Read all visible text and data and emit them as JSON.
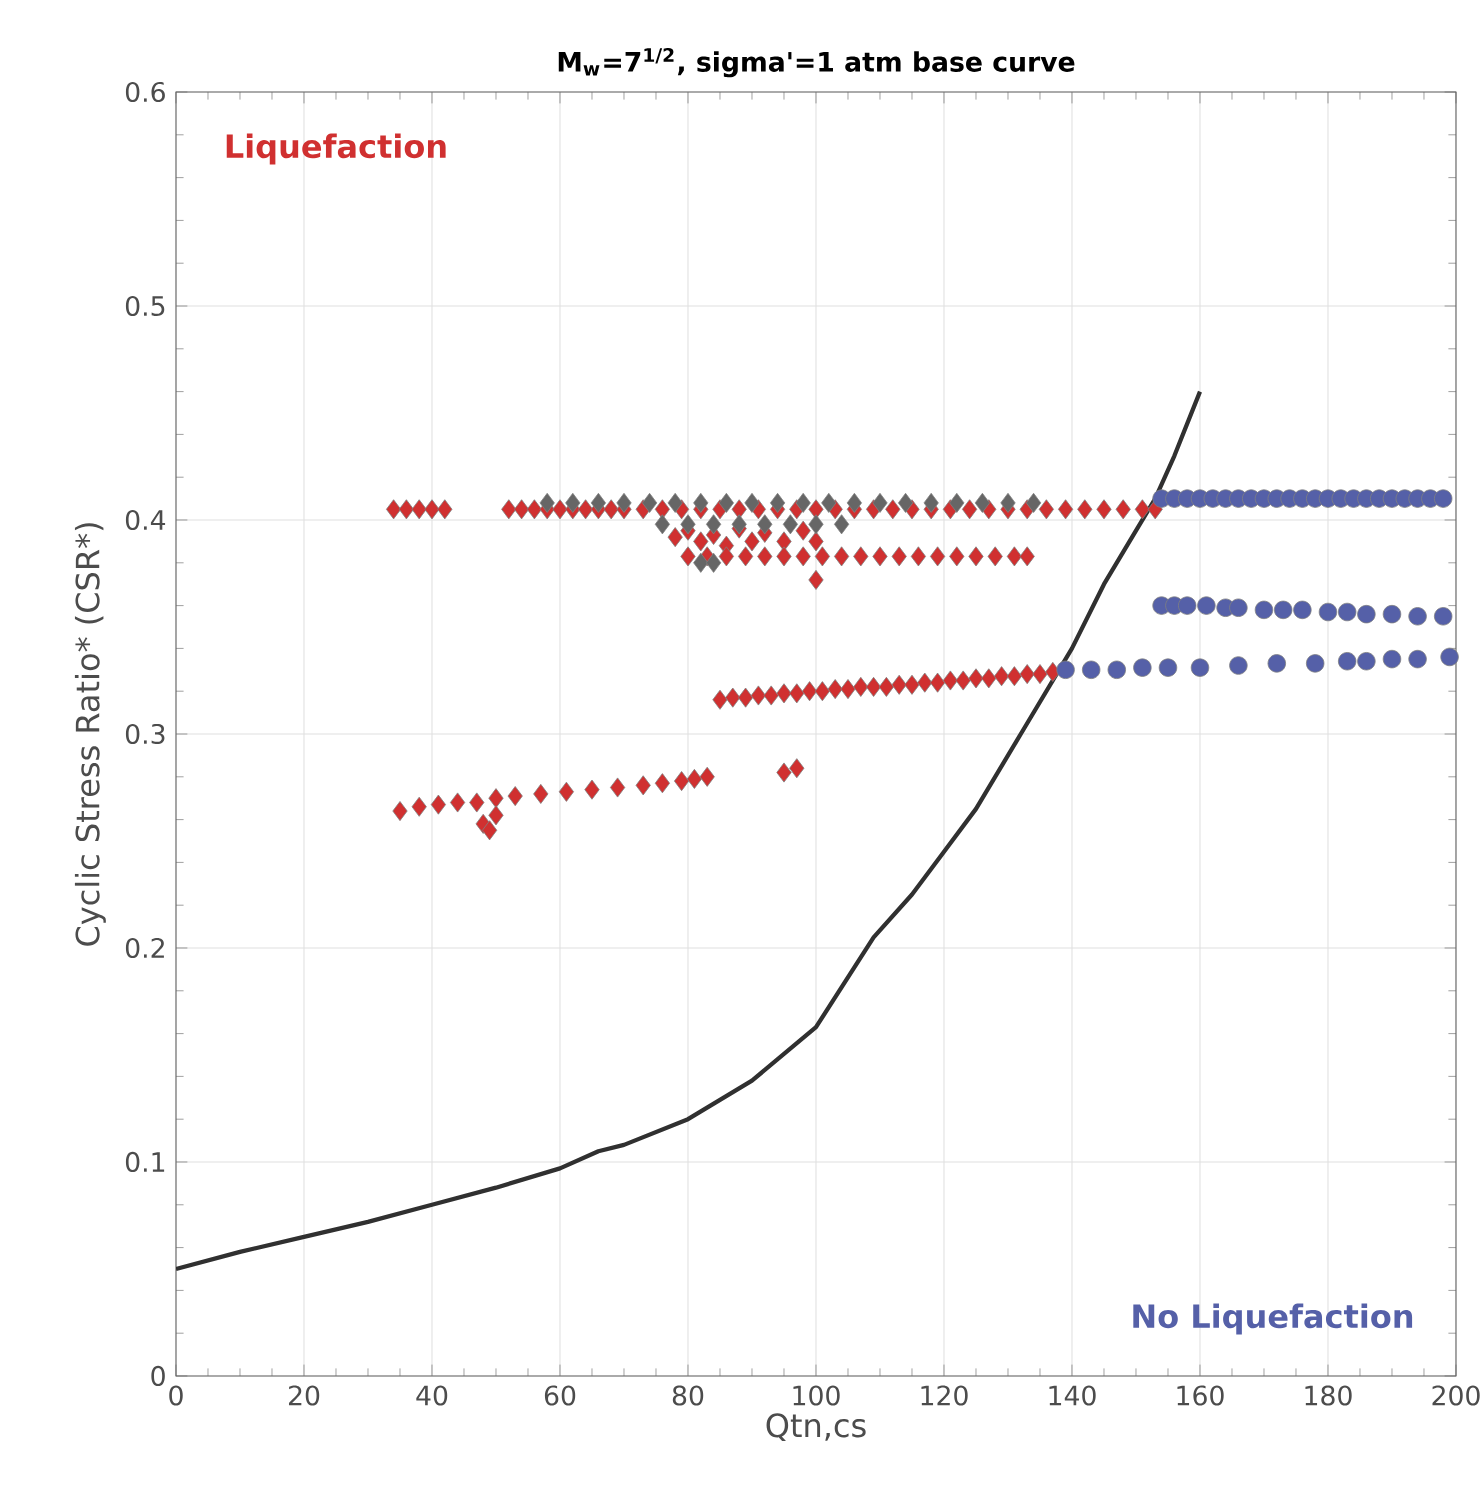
{
  "chart_data": {
    "type": "scatter",
    "title": "M$_{w}$=7$^{1/2}$, sigma'=1 atm base curve",
    "xlabel": "Qtn,cs",
    "ylabel": "Cyclic Stress Ratio* (CSR*)",
    "annotations": [
      "Liquefaction",
      "No Liquefaction"
    ],
    "xlim": [
      0,
      200
    ],
    "ylim": [
      0,
      0.6
    ],
    "xticks": [
      0,
      20,
      40,
      60,
      80,
      100,
      120,
      140,
      160,
      180,
      200
    ],
    "yticks": [
      0,
      0.1,
      0.2,
      0.3,
      0.4,
      0.5,
      0.6
    ],
    "grid": true,
    "series": [
      {
        "marker": "diamond",
        "color": "#d03030",
        "x": [
          34,
          36,
          38,
          40,
          42,
          52,
          54,
          56,
          58,
          60,
          62,
          64,
          66,
          68,
          70,
          73,
          76,
          79,
          82,
          85,
          88,
          91,
          94,
          97,
          100,
          103,
          106,
          109,
          112,
          115,
          118,
          121,
          124,
          127,
          130,
          133,
          136,
          139,
          142,
          145,
          148,
          151,
          153,
          78,
          80,
          82,
          84,
          86,
          88,
          90,
          92,
          95,
          98,
          100,
          80,
          83,
          86,
          89,
          92,
          95,
          98,
          101,
          104,
          107,
          110,
          113,
          116,
          119,
          122,
          125,
          128,
          131,
          133,
          100,
          85,
          87,
          89,
          91,
          93,
          95,
          97,
          99,
          101,
          103,
          105,
          107,
          109,
          111,
          113,
          115,
          117,
          119,
          121,
          123,
          125,
          127,
          129,
          131,
          133,
          135,
          137,
          35,
          38,
          41,
          44,
          47,
          50,
          53,
          57,
          61,
          65,
          69,
          73,
          76,
          79,
          81,
          83,
          48,
          50,
          49,
          95,
          97
        ],
        "values": [
          0.405,
          0.405,
          0.405,
          0.405,
          0.405,
          0.405,
          0.405,
          0.405,
          0.405,
          0.405,
          0.405,
          0.405,
          0.405,
          0.405,
          0.405,
          0.405,
          0.405,
          0.405,
          0.405,
          0.405,
          0.405,
          0.405,
          0.405,
          0.405,
          0.405,
          0.405,
          0.405,
          0.405,
          0.405,
          0.405,
          0.405,
          0.405,
          0.405,
          0.405,
          0.405,
          0.405,
          0.405,
          0.405,
          0.405,
          0.405,
          0.405,
          0.405,
          0.405,
          0.392,
          0.395,
          0.39,
          0.393,
          0.388,
          0.396,
          0.39,
          0.394,
          0.39,
          0.395,
          0.39,
          0.383,
          0.383,
          0.383,
          0.383,
          0.383,
          0.383,
          0.383,
          0.383,
          0.383,
          0.383,
          0.383,
          0.383,
          0.383,
          0.383,
          0.383,
          0.383,
          0.383,
          0.383,
          0.383,
          0.372,
          0.316,
          0.317,
          0.317,
          0.318,
          0.318,
          0.319,
          0.319,
          0.32,
          0.32,
          0.321,
          0.321,
          0.322,
          0.322,
          0.322,
          0.323,
          0.323,
          0.324,
          0.324,
          0.325,
          0.325,
          0.326,
          0.326,
          0.327,
          0.327,
          0.328,
          0.328,
          0.329,
          0.264,
          0.266,
          0.267,
          0.268,
          0.268,
          0.27,
          0.271,
          0.272,
          0.273,
          0.274,
          0.275,
          0.276,
          0.277,
          0.278,
          0.279,
          0.28,
          0.258,
          0.262,
          0.255,
          0.282,
          0.284
        ]
      },
      {
        "marker": "diamond",
        "color": "#666666",
        "x": [
          58,
          62,
          66,
          70,
          74,
          78,
          82,
          86,
          90,
          94,
          98,
          102,
          106,
          110,
          114,
          118,
          122,
          126,
          130,
          134,
          76,
          80,
          84,
          88,
          92,
          96,
          100,
          104,
          82,
          84
        ],
        "values": [
          0.408,
          0.408,
          0.408,
          0.408,
          0.408,
          0.408,
          0.408,
          0.408,
          0.408,
          0.408,
          0.408,
          0.408,
          0.408,
          0.408,
          0.408,
          0.408,
          0.408,
          0.408,
          0.408,
          0.408,
          0.398,
          0.398,
          0.398,
          0.398,
          0.398,
          0.398,
          0.398,
          0.398,
          0.38,
          0.38
        ]
      },
      {
        "marker": "circle",
        "color": "#5560a8",
        "x": [
          154,
          156,
          158,
          160,
          162,
          164,
          166,
          168,
          170,
          172,
          174,
          176,
          178,
          180,
          182,
          184,
          186,
          188,
          190,
          192,
          194,
          196,
          198,
          154,
          156,
          158,
          161,
          164,
          166,
          170,
          173,
          176,
          180,
          183,
          186,
          190,
          194,
          198,
          139,
          143,
          147,
          151,
          155,
          160,
          166,
          172,
          178,
          183,
          186,
          190,
          194,
          199
        ],
        "values": [
          0.41,
          0.41,
          0.41,
          0.41,
          0.41,
          0.41,
          0.41,
          0.41,
          0.41,
          0.41,
          0.41,
          0.41,
          0.41,
          0.41,
          0.41,
          0.41,
          0.41,
          0.41,
          0.41,
          0.41,
          0.41,
          0.41,
          0.41,
          0.36,
          0.36,
          0.36,
          0.36,
          0.359,
          0.359,
          0.358,
          0.358,
          0.358,
          0.357,
          0.357,
          0.356,
          0.356,
          0.355,
          0.355,
          0.33,
          0.33,
          0.33,
          0.331,
          0.331,
          0.331,
          0.332,
          0.333,
          0.333,
          0.334,
          0.334,
          0.335,
          0.335,
          0.336
        ]
      },
      {
        "type": "line",
        "marker": "none",
        "color": "#303030",
        "x": [
          0,
          10,
          20,
          30,
          40,
          50,
          60,
          66,
          70,
          80,
          90,
          100,
          109,
          115,
          120,
          125,
          132,
          140,
          145,
          150,
          153,
          156,
          160
        ],
        "values": [
          0.05,
          0.058,
          0.065,
          0.072,
          0.08,
          0.088,
          0.097,
          0.105,
          0.108,
          0.12,
          0.138,
          0.163,
          0.205,
          0.225,
          0.245,
          0.265,
          0.3,
          0.34,
          0.37,
          0.395,
          0.41,
          0.43,
          0.46
        ]
      }
    ]
  }
}
